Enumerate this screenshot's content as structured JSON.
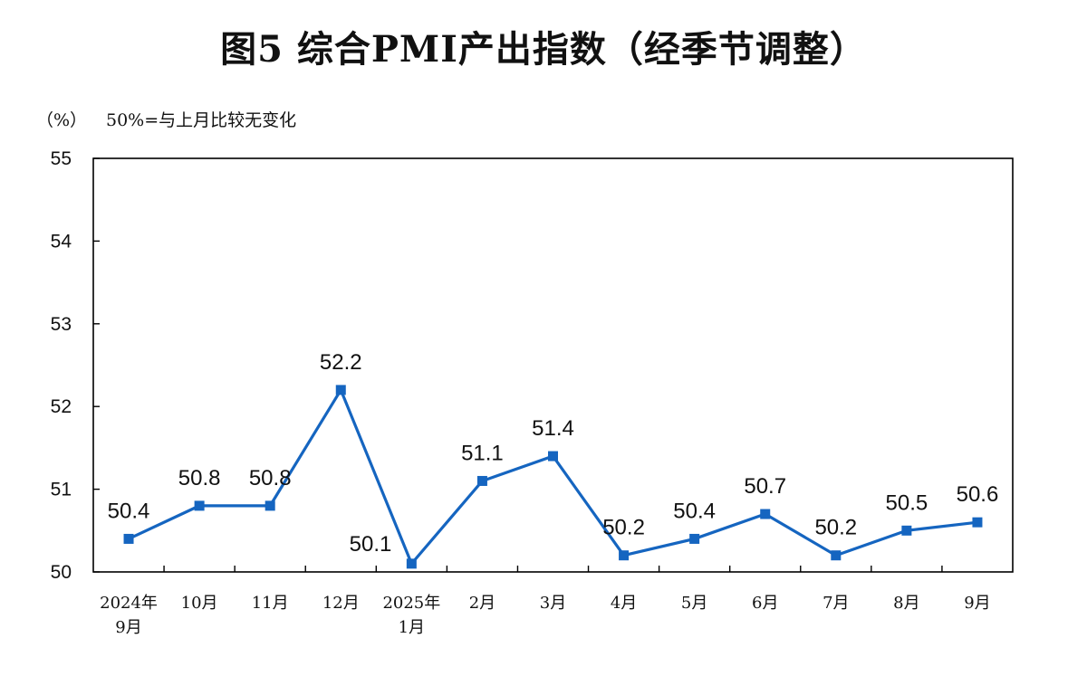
{
  "chart_data": {
    "type": "line",
    "title": "图5  综合PMI产出指数（经季节调整）",
    "unit_label": "（%）",
    "note": "50%=与上月比较无变化",
    "ylim": [
      50,
      55
    ],
    "yticks": [
      50,
      51,
      52,
      53,
      54,
      55
    ],
    "grid": false,
    "categories": [
      [
        "2024年",
        "9月"
      ],
      [
        "10月"
      ],
      [
        "11月"
      ],
      [
        "12月"
      ],
      [
        "2025年",
        "1月"
      ],
      [
        "2月"
      ],
      [
        "3月"
      ],
      [
        "4月"
      ],
      [
        "5月"
      ],
      [
        "6月"
      ],
      [
        "7月"
      ],
      [
        "8月"
      ],
      [
        "9月"
      ]
    ],
    "series": [
      {
        "values": [
          50.4,
          50.8,
          50.8,
          52.2,
          50.1,
          51.1,
          51.4,
          50.2,
          50.4,
          50.7,
          50.2,
          50.5,
          50.6
        ],
        "labels": [
          "50.4",
          "50.8",
          "50.8",
          "52.2",
          "50.1",
          "51.1",
          "51.4",
          "50.2",
          "50.4",
          "50.7",
          "50.2",
          "50.5",
          "50.6"
        ]
      }
    ],
    "colors": {
      "line": "#1565c0",
      "axis": "#000000"
    }
  }
}
